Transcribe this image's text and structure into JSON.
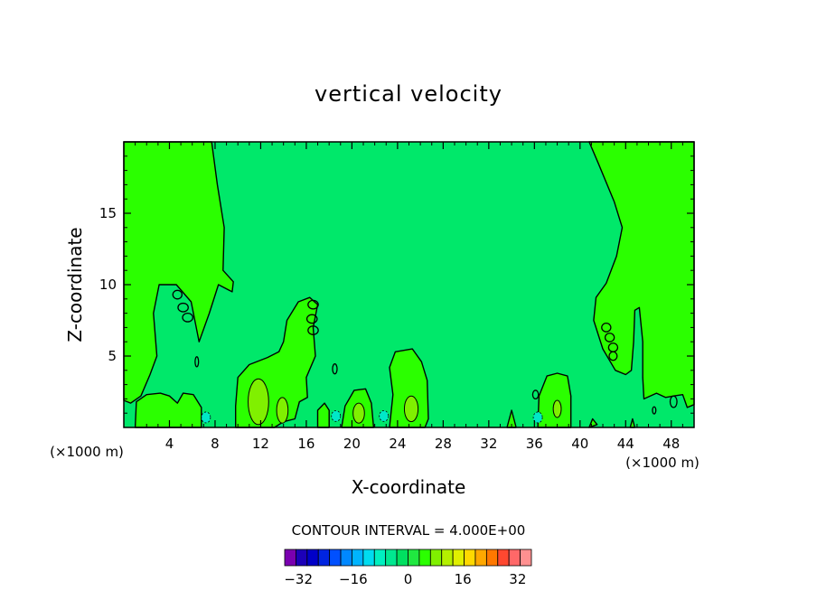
{
  "chart_data": {
    "type": "heatmap",
    "title": "vertical velocity",
    "xlabel": "X-coordinate",
    "ylabel": "Z-coordinate",
    "x_unit_left": "(×1000 m)",
    "x_unit_right": "(×1000 m)",
    "xlim": [
      0,
      50
    ],
    "ylim": [
      0,
      20
    ],
    "x_ticks": [
      4,
      8,
      12,
      16,
      20,
      24,
      28,
      32,
      36,
      40,
      44,
      48
    ],
    "y_ticks": [
      5,
      10,
      15
    ],
    "contour_interval_text": "CONTOUR INTERVAL = 4.000E+00",
    "colorbar": {
      "levels_min": -36,
      "levels_max": 36,
      "interval": 4,
      "tick_values": [
        -32,
        -16,
        0,
        16,
        32
      ],
      "colors": [
        "#7a00b0",
        "#1c00b8",
        "#0000c8",
        "#0024e0",
        "#0050ff",
        "#0088ff",
        "#00b4ff",
        "#00dcf0",
        "#00f0c0",
        "#00e890",
        "#00e060",
        "#20e840",
        "#2bff00",
        "#80f000",
        "#b4f000",
        "#e0f000",
        "#ffd800",
        "#ffa800",
        "#ff7800",
        "#ff4830",
        "#ff6868",
        "#ff9090"
      ]
    },
    "field_colors": {
      "background_level": "#00e86a",
      "positive_level": "#2bff00",
      "strong_positive_level": "#80f000",
      "weak_negative_level": "#00e8c8"
    }
  }
}
